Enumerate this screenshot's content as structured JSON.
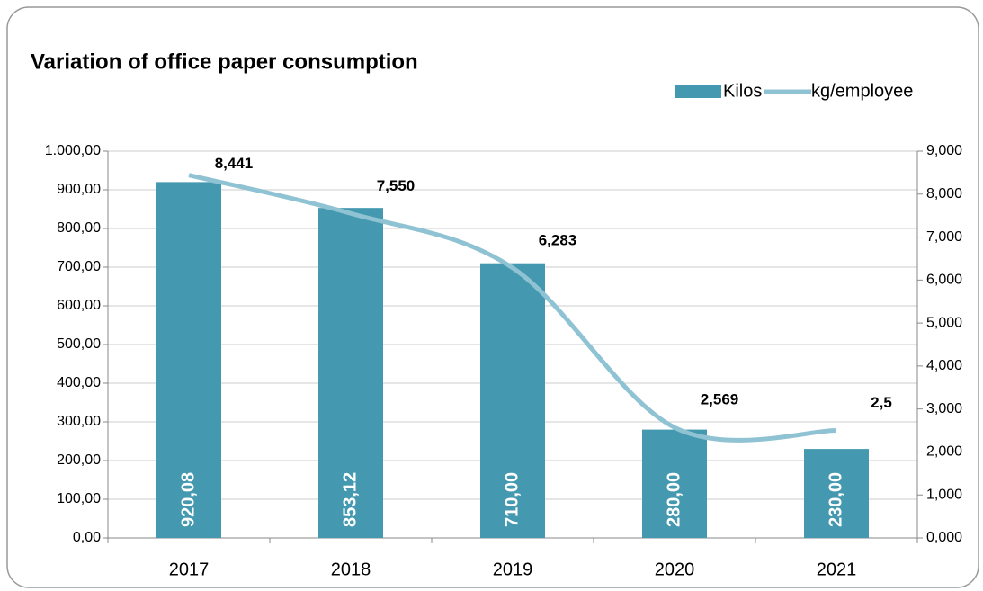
{
  "chart_data": {
    "type": "combo",
    "title": "Variation of office paper consumption",
    "categories": [
      "2017",
      "2018",
      "2019",
      "2020",
      "2021"
    ],
    "series": [
      {
        "name": "Kilos",
        "type": "bar",
        "color": "#4499b0",
        "values": [
          920.08,
          853.12,
          710,
          280,
          230
        ],
        "value_labels": [
          "920,08",
          "853,12",
          "710,00",
          "280,00",
          "230,00"
        ]
      },
      {
        "name": "kg/employee",
        "type": "line",
        "axis": "y2",
        "color": "#8fc3d3",
        "values": [
          8.441,
          7.55,
          6.283,
          2.569,
          2.5
        ],
        "value_labels": [
          "8,441",
          "7,550",
          "6,283",
          "2,569",
          "2,5"
        ]
      }
    ],
    "ylim": [
      0,
      1000
    ],
    "yticks": [
      {
        "value": 0,
        "label": "0,00"
      },
      {
        "value": 100,
        "label": "100,00"
      },
      {
        "value": 200,
        "label": "200,00"
      },
      {
        "value": 300,
        "label": "300,00"
      },
      {
        "value": 400,
        "label": "400,00"
      },
      {
        "value": 500,
        "label": "500,00"
      },
      {
        "value": 600,
        "label": "600,00"
      },
      {
        "value": 700,
        "label": "700,00"
      },
      {
        "value": 800,
        "label": "800,00"
      },
      {
        "value": 900,
        "label": "900,00"
      },
      {
        "value": 1000,
        "label": "1.000,00"
      }
    ],
    "y2lim": [
      0,
      9
    ],
    "y2ticks": [
      {
        "value": 0,
        "label": "0,000"
      },
      {
        "value": 1,
        "label": "1,000"
      },
      {
        "value": 2,
        "label": "2,000"
      },
      {
        "value": 3,
        "label": "3,000"
      },
      {
        "value": 4,
        "label": "4,000"
      },
      {
        "value": 5,
        "label": "5,000"
      },
      {
        "value": 6,
        "label": "6,000"
      },
      {
        "value": 7,
        "label": "7,000"
      },
      {
        "value": 8,
        "label": "8,000"
      },
      {
        "value": 9,
        "label": "9,000"
      }
    ],
    "grid": true,
    "legend": "top-right"
  }
}
